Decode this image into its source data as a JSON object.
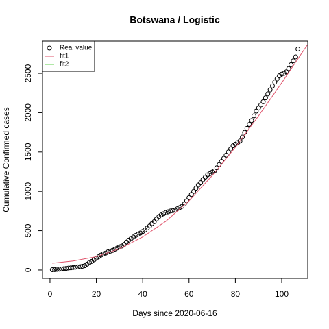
{
  "chart_data": {
    "type": "scatter",
    "title": "Botswana / Logistic",
    "x_label": "Days since 2020-06-16",
    "y_label": "Cumulative Confirmed cases",
    "xlim": [
      -3.24,
      111.24
    ],
    "ylim": [
      -105,
      2910
    ],
    "xticks": [
      0,
      20,
      40,
      60,
      80,
      100
    ],
    "yticks": [
      0,
      500,
      1000,
      1500,
      2000,
      2500
    ],
    "legend": "top-left",
    "series": [
      {
        "name": "Real value",
        "kind": "points",
        "color": "#000000",
        "x": [
          1,
          2,
          3,
          4,
          5,
          6,
          7,
          8,
          9,
          10,
          11,
          12,
          13,
          14,
          15,
          16,
          17,
          18,
          19,
          20,
          21,
          22,
          23,
          24,
          25,
          26,
          27,
          28,
          29,
          30,
          31,
          32,
          33,
          34,
          35,
          36,
          37,
          38,
          39,
          40,
          41,
          42,
          43,
          44,
          45,
          46,
          47,
          48,
          49,
          50,
          51,
          52,
          53,
          54,
          55,
          56,
          57,
          58,
          59,
          60,
          61,
          62,
          63,
          64,
          65,
          66,
          67,
          68,
          69,
          70,
          71,
          72,
          73,
          74,
          75,
          76,
          77,
          78,
          79,
          80,
          81,
          82,
          83,
          84,
          85,
          86,
          87,
          88,
          89,
          90,
          91,
          92,
          93,
          94,
          95,
          96,
          97,
          98,
          99,
          100,
          101,
          102,
          103,
          104,
          105,
          106,
          107
        ],
        "values": [
          4,
          5,
          8,
          10,
          13,
          17,
          20,
          25,
          28,
          32,
          36,
          40,
          43,
          48,
          55,
          75,
          95,
          110,
          130,
          150,
          170,
          190,
          205,
          215,
          230,
          240,
          250,
          265,
          280,
          295,
          305,
          325,
          355,
          380,
          400,
          420,
          440,
          455,
          470,
          490,
          510,
          535,
          560,
          590,
          615,
          650,
          680,
          700,
          715,
          730,
          740,
          750,
          755,
          760,
          780,
          795,
          810,
          840,
          880,
          920,
          960,
          1000,
          1040,
          1080,
          1110,
          1150,
          1180,
          1210,
          1225,
          1245,
          1260,
          1300,
          1340,
          1380,
          1420,
          1460,
          1500,
          1540,
          1580,
          1600,
          1620,
          1640,
          1690,
          1750,
          1800,
          1850,
          1900,
          1960,
          2020,
          2060,
          2100,
          2140,
          2190,
          2240,
          2290,
          2340,
          2390,
          2430,
          2470,
          2490,
          2500,
          2520,
          2560,
          2610,
          2660,
          2710,
          2810
        ]
      },
      {
        "name": "fit1",
        "kind": "line",
        "color": "#DF536B",
        "x": [
          1,
          10,
          20,
          30,
          40,
          50,
          60,
          70,
          80,
          90,
          100,
          111
        ],
        "values": [
          87,
          115,
          170,
          270,
          420,
          620,
          880,
          1200,
          1560,
          1960,
          2380,
          2860
        ]
      },
      {
        "name": "fit2",
        "kind": "line",
        "color": "#61D04F",
        "x": [],
        "values": []
      }
    ]
  }
}
